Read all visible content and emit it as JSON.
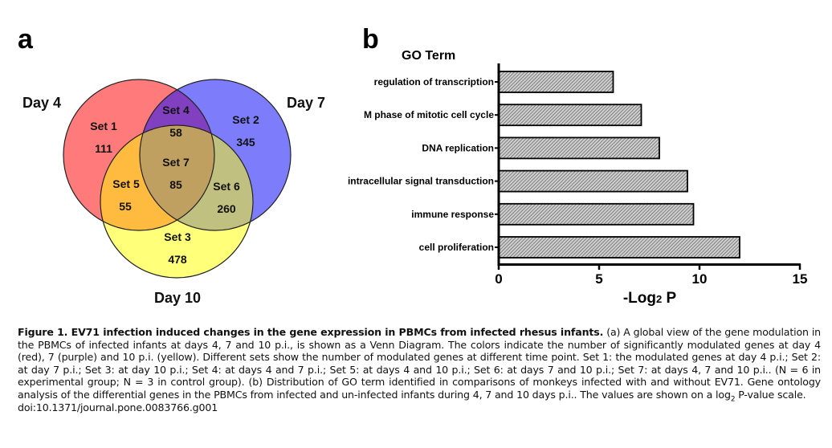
{
  "panel_a": {
    "letter": "a",
    "type": "venn",
    "circles": [
      {
        "name": "Day 4",
        "color": "#ff7a7a"
      },
      {
        "name": "Day 7",
        "color": "#7d7dfc"
      },
      {
        "name": "Day 10",
        "color": "#ffff7a"
      }
    ],
    "regions": [
      {
        "set": "Set 1",
        "count": "111",
        "color": "#ff8080"
      },
      {
        "set": "Set 2",
        "count": "345",
        "color": "#7f7ffc"
      },
      {
        "set": "Set 3",
        "count": "478",
        "color": "#ffff80"
      },
      {
        "set": "Set 4",
        "count": "58",
        "color": "#8040c0"
      },
      {
        "set": "Set 5",
        "count": "55",
        "color": "#ffbb40"
      },
      {
        "set": "Set 6",
        "count": "260",
        "color": "#c0c080"
      },
      {
        "set": "Set 7",
        "count": "85",
        "color": "#c0a060"
      }
    ]
  },
  "chart_data": {
    "type": "bar",
    "orientation": "horizontal",
    "panel_letter": "b",
    "title": "GO Term",
    "xlabel": "-Log2 P",
    "xlabel_main": "-Log",
    "xlabel_sub": "2",
    "xlabel_tail": " P",
    "ylabel": "",
    "categories": [
      "regulation of transcription",
      "M phase of mitotic cell cycle",
      "DNA replication",
      "intracellular signal transduction",
      "immune response",
      "cell proliferation"
    ],
    "values": [
      5.7,
      7.1,
      8.0,
      9.4,
      9.7,
      12.0
    ],
    "xlim": [
      0,
      15
    ],
    "xticks": [
      "0",
      "5",
      "10",
      "15"
    ],
    "xtick_values": [
      0,
      5,
      10,
      15
    ],
    "grid": false,
    "bar_fill": "hatched-gray"
  },
  "caption": {
    "bold": "Figure 1. EV71 infection induced changes in the gene expression in PBMCs from infected rhesus infants.",
    "text_1": " (a) A global view of the gene modulation in the PBMCs of infected infants at days 4, 7 and 10 p.i., is shown as a Venn Diagram. The colors indicate the number of significantly modulated genes at day 4 (red), 7 (purple) and 10 p.i. (yellow). Different sets show the number of modulated genes at different time point. Set 1: the modulated genes at day 4 p.i.; Set 2: at day 7 p.i.; Set 3: at day 10 p.i.; Set 4: at days 4 and 7 p.i.; Set 5: at days 4 and 10 p.i.; Set 6: at days 7 and 10 p.i.; Set 7: at days 4, 7 and 10 p.i.. (N = 6 in experimental group; N = 3 in control group). (b) Distribution of GO term identified in comparisons of monkeys infected with and without EV71. Gene ontology analysis of the differential genes in the PBMCs from infected and un-infected infants during 4, 7 and 10 days p.i.. The values are shown on a log",
    "sub": "2",
    "text_2": " P-value scale.",
    "doi": "doi:10.1371/journal.pone.0083766.g001"
  }
}
